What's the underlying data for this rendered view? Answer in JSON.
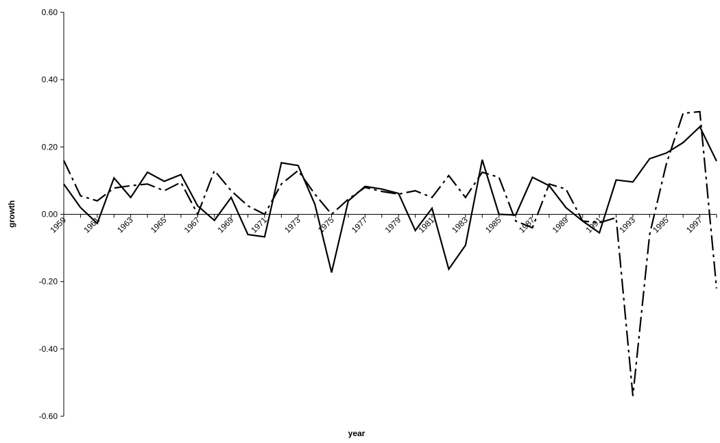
{
  "chart_data": {
    "type": "line",
    "xlabel": "year",
    "ylabel": "growth",
    "categories": [
      "1959",
      null,
      "1961",
      null,
      "1963",
      null,
      "1965",
      null,
      "1967",
      null,
      "1969",
      null,
      "1971",
      null,
      "1973",
      null,
      "1975",
      null,
      "1977",
      null,
      "1979",
      null,
      "1981",
      null,
      "1983",
      null,
      "1985",
      null,
      "1987",
      null,
      "1989",
      null,
      "1991",
      null,
      "1993",
      null,
      "1995",
      null,
      "1997",
      null
    ],
    "series": [
      {
        "color": "#000000",
        "dash": "solid",
        "values": [
          0.09,
          0.02,
          -0.027,
          0.108,
          0.05,
          0.125,
          0.098,
          0.118,
          0.025,
          -0.018,
          0.05,
          -0.06,
          -0.067,
          0.153,
          0.145,
          0.03,
          -0.173,
          0.04,
          0.083,
          0.075,
          0.062,
          -0.048,
          0.018,
          -0.163,
          -0.092,
          0.162,
          0.0,
          -0.002,
          0.11,
          0.085,
          0.02,
          -0.02,
          -0.055,
          0.102,
          0.096,
          0.165,
          0.182,
          0.213,
          0.26,
          0.158
        ]
      },
      {
        "color": "#000000",
        "dash": "dashdot",
        "values": [
          0.16,
          0.055,
          0.04,
          0.078,
          0.085,
          0.09,
          0.07,
          0.095,
          0.0,
          0.13,
          0.07,
          0.025,
          0.0,
          0.09,
          0.13,
          0.06,
          0.0,
          0.045,
          0.08,
          0.068,
          0.06,
          0.07,
          0.05,
          0.115,
          0.05,
          0.125,
          0.11,
          -0.02,
          -0.04,
          0.09,
          0.075,
          -0.02,
          -0.025,
          -0.01,
          -0.54,
          -0.06,
          0.15,
          0.3,
          0.305,
          -0.22
        ]
      }
    ],
    "ylim": [
      -0.6,
      0.6
    ],
    "yticks": [
      {
        "value": -0.6,
        "label": "-0.60"
      },
      {
        "value": -0.4,
        "label": "-0.40"
      },
      {
        "value": -0.2,
        "label": "-0.20"
      },
      {
        "value": 0,
        "label": "0.00"
      },
      {
        "value": 0.2,
        "label": "0.20"
      },
      {
        "value": 0.4,
        "label": "0.40"
      },
      {
        "value": 0.6,
        "label": "0.60"
      }
    ],
    "grid": false
  }
}
